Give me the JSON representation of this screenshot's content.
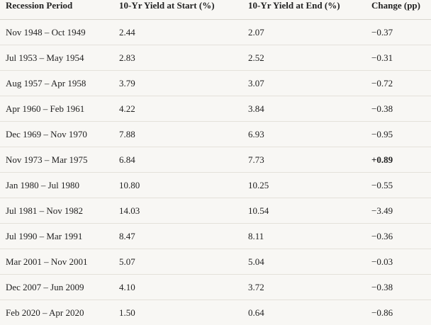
{
  "table": {
    "header": [
      "Recession Period",
      "10-Yr Yield at Start (%)",
      "10-Yr Yield at End (%)",
      "Change (pp)"
    ],
    "rows": [
      [
        "Nov 1948 – Oct 1949",
        "2.44",
        "2.07",
        "−0.37"
      ],
      [
        "Jul 1953 – May 1954",
        "2.83",
        "2.52",
        "−0.31"
      ],
      [
        "Aug 1957 – Apr 1958",
        "3.79",
        "3.07",
        "−0.72"
      ],
      [
        "Apr 1960 – Feb 1961",
        "4.22",
        "3.84",
        "−0.38"
      ],
      [
        "Dec 1969 – Nov 1970",
        "7.88",
        "6.93",
        "−0.95"
      ],
      [
        "Nov 1973 – Mar 1975",
        "6.84",
        "7.73",
        "+0.89"
      ],
      [
        "Jan 1980 – Jul 1980",
        "10.80",
        "10.25",
        "−0.55"
      ],
      [
        "Jul 1981 – Nov 1982",
        "14.03",
        "10.54",
        "−3.49"
      ],
      [
        "Jul 1990 – Mar 1991",
        "8.47",
        "8.11",
        "−0.36"
      ],
      [
        "Mar 2001 – Nov 2001",
        "5.07",
        "5.04",
        "−0.03"
      ],
      [
        "Dec 2007 – Jun 2009",
        "4.10",
        "3.72",
        "−0.38"
      ],
      [
        "Feb 2020 – Apr 2020",
        "1.50",
        "0.64",
        "−0.86"
      ]
    ]
  }
}
